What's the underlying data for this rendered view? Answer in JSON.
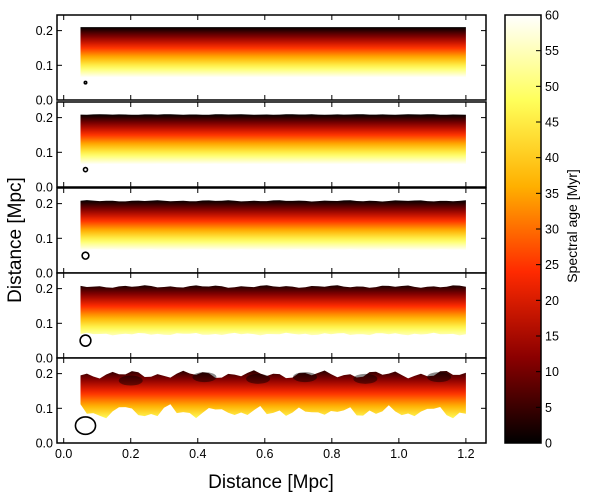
{
  "chart_data": {
    "type": "heatmap",
    "xlabel": "Distance [Mpc]",
    "ylabel": "Distance [Mpc]",
    "xlim": [
      -0.02,
      1.26
    ],
    "ylim": [
      0.0,
      0.245
    ],
    "x_ticks": [
      0.0,
      0.2,
      0.4,
      0.6,
      0.8,
      1.0,
      1.2
    ],
    "x_tick_labels": [
      "0.0",
      "0.2",
      "0.4",
      "0.6",
      "0.8",
      "1.0",
      "1.2"
    ],
    "y_ticks": [
      0.0,
      0.1,
      0.2
    ],
    "y_tick_labels": [
      "0.0",
      "0.1",
      "0.2"
    ],
    "colorbar": {
      "label": "Spectral age [Myr]",
      "range": [
        0,
        60
      ],
      "ticks": [
        0,
        5,
        10,
        15,
        20,
        25,
        30,
        35,
        40,
        45,
        50,
        55,
        60
      ],
      "tick_labels": [
        "0",
        "5",
        "10",
        "15",
        "20",
        "25",
        "30",
        "35",
        "40",
        "45",
        "50",
        "55",
        "60"
      ],
      "colormap": "hot_reversed",
      "colors": [
        "#000000",
        "#8b0000",
        "#ff2a00",
        "#ffb000",
        "#ffff5a",
        "#ffffff"
      ]
    },
    "panels": [
      {
        "source_x_range": [
          0.05,
          1.2
        ],
        "source_y_range": [
          0.065,
          0.21
        ],
        "age_range_myr": [
          0,
          60
        ],
        "beam_x": 0.065,
        "beam_y": 0.05,
        "beam_w": 0.006,
        "beam_h": 0.006,
        "edge_roughness": 0.0
      },
      {
        "source_x_range": [
          0.05,
          1.2
        ],
        "source_y_range": [
          0.065,
          0.21
        ],
        "age_range_myr": [
          0,
          60
        ],
        "beam_x": 0.065,
        "beam_y": 0.05,
        "beam_w": 0.012,
        "beam_h": 0.012,
        "edge_roughness": 0.002
      },
      {
        "source_x_range": [
          0.05,
          1.2
        ],
        "source_y_range": [
          0.065,
          0.21
        ],
        "age_range_myr": [
          0,
          60
        ],
        "beam_x": 0.065,
        "beam_y": 0.05,
        "beam_w": 0.02,
        "beam_h": 0.02,
        "edge_roughness": 0.004
      },
      {
        "source_x_range": [
          0.05,
          1.2
        ],
        "source_y_range": [
          0.065,
          0.21
        ],
        "age_range_myr": [
          2,
          55
        ],
        "beam_x": 0.065,
        "beam_y": 0.05,
        "beam_w": 0.032,
        "beam_h": 0.032,
        "edge_roughness": 0.008
      },
      {
        "source_x_range": [
          0.05,
          1.2
        ],
        "source_y_range": [
          0.07,
          0.21
        ],
        "age_range_myr": [
          3,
          48
        ],
        "beam_x": 0.065,
        "beam_y": 0.05,
        "beam_w": 0.06,
        "beam_h": 0.05,
        "edge_roughness": 0.025
      }
    ]
  }
}
